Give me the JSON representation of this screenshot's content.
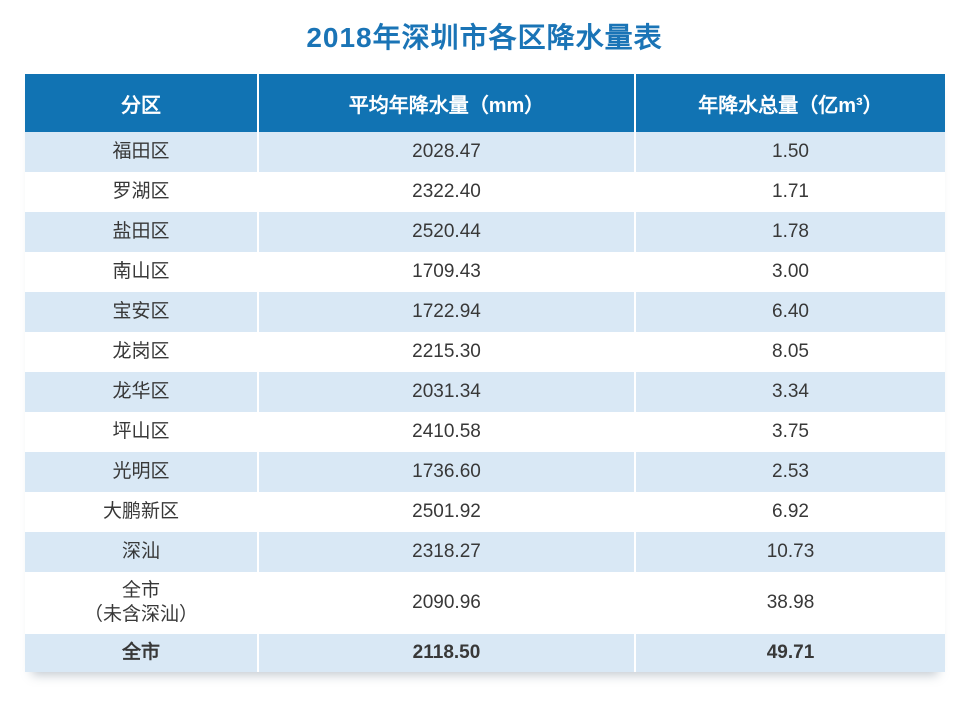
{
  "title": "2018年深圳市各区降水量表",
  "table": {
    "columns": [
      "分区",
      "平均年降水量（mm）",
      "年降水总量（亿m³）"
    ],
    "rows": [
      {
        "district": "福田区",
        "avg": "2028.47",
        "total": "1.50"
      },
      {
        "district": "罗湖区",
        "avg": "2322.40",
        "total": "1.71"
      },
      {
        "district": "盐田区",
        "avg": "2520.44",
        "total": "1.78"
      },
      {
        "district": "南山区",
        "avg": "1709.43",
        "total": "3.00"
      },
      {
        "district": "宝安区",
        "avg": "1722.94",
        "total": "6.40"
      },
      {
        "district": "龙岗区",
        "avg": "2215.30",
        "total": "8.05"
      },
      {
        "district": "龙华区",
        "avg": "2031.34",
        "total": "3.34"
      },
      {
        "district": "坪山区",
        "avg": "2410.58",
        "total": "3.75"
      },
      {
        "district": "光明区",
        "avg": "1736.60",
        "total": "2.53"
      },
      {
        "district": "大鹏新区",
        "avg": "2501.92",
        "total": "6.92"
      },
      {
        "district": "深汕",
        "avg": "2318.27",
        "total": "10.73"
      },
      {
        "district": "全市\n（未含深汕）",
        "avg": "2090.96",
        "total": "38.98"
      },
      {
        "district": "全市",
        "avg": "2118.50",
        "total": "49.71"
      }
    ]
  },
  "colors": {
    "title_color": "#1a74b6",
    "header_bg": "#1173b3",
    "header_text": "#ffffff",
    "stripe_bg": "#d9e8f5",
    "row_bg": "#ffffff",
    "body_text": "#383838"
  },
  "chart_data": {
    "type": "table",
    "title": "2018年深圳市各区降水量表",
    "columns": [
      "分区",
      "平均年降水量（mm）",
      "年降水总量（亿m³）"
    ],
    "rows": [
      [
        "福田区",
        2028.47,
        1.5
      ],
      [
        "罗湖区",
        2322.4,
        1.71
      ],
      [
        "盐田区",
        2520.44,
        1.78
      ],
      [
        "南山区",
        1709.43,
        3.0
      ],
      [
        "宝安区",
        1722.94,
        6.4
      ],
      [
        "龙岗区",
        2215.3,
        8.05
      ],
      [
        "龙华区",
        2031.34,
        3.34
      ],
      [
        "坪山区",
        2410.58,
        3.75
      ],
      [
        "光明区",
        1736.6,
        2.53
      ],
      [
        "大鹏新区",
        2501.92,
        6.92
      ],
      [
        "深汕",
        2318.27,
        10.73
      ],
      [
        "全市（未含深汕）",
        2090.96,
        38.98
      ],
      [
        "全市",
        2118.5,
        49.71
      ]
    ]
  }
}
